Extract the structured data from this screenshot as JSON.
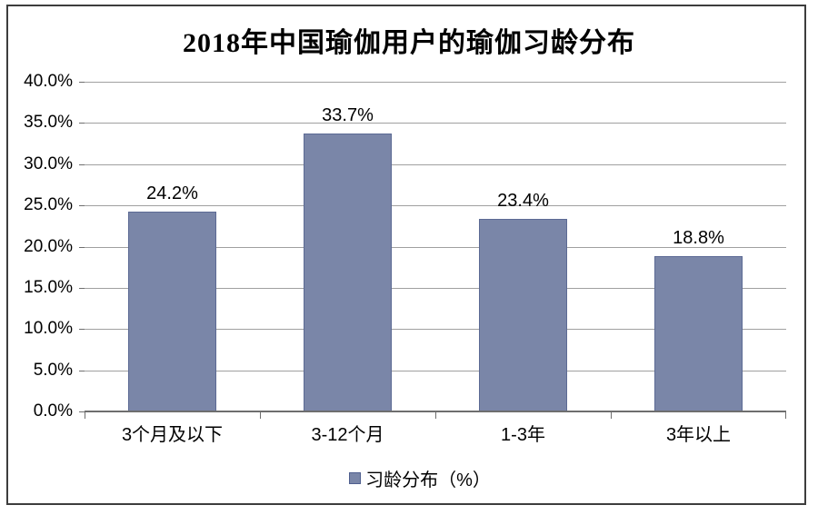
{
  "chart_data": {
    "type": "bar",
    "title": "2018年中国瑜伽用户的瑜伽习龄分布",
    "categories": [
      "3个月及以下",
      "3-12个月",
      "1-3年",
      "3年以上"
    ],
    "values": [
      24.2,
      33.7,
      23.4,
      18.8
    ],
    "value_labels": [
      "24.2%",
      "33.7%",
      "23.4%",
      "18.8%"
    ],
    "xlabel": "",
    "ylabel": "",
    "ylim": [
      0,
      40
    ],
    "ytick_step": 5,
    "ytick_labels": [
      "0.0%",
      "5.0%",
      "10.0%",
      "15.0%",
      "20.0%",
      "25.0%",
      "30.0%",
      "35.0%",
      "40.0%"
    ],
    "grid": true,
    "legend_position": "bottom",
    "legend": [
      {
        "label": "习龄分布（%）",
        "color": "#7a86a8"
      }
    ],
    "colors": {
      "bar_fill": "#7a86a8",
      "bar_border": "#5c6a94",
      "gridline": "#a0a0a0",
      "axis": "#6e6e6e",
      "text": "#000000"
    }
  }
}
